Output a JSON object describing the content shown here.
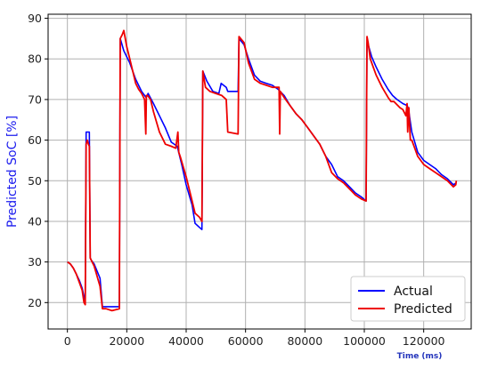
{
  "chart_data": {
    "type": "line",
    "title": "",
    "xlabel": "Time (ms)",
    "ylabel": "Predicted SoC [%]",
    "xlabel_color": "#2233bb",
    "ylabel_color": "#1a1aee",
    "xlim": [
      -6500,
      136000
    ],
    "ylim": [
      13.5,
      91
    ],
    "xticks": [
      0,
      20000,
      40000,
      60000,
      80000,
      100000,
      120000
    ],
    "yticks": [
      20,
      30,
      40,
      50,
      60,
      70,
      80,
      90
    ],
    "grid": true,
    "legend_position": "bottom-right",
    "series": [
      {
        "name": "Actual",
        "color": "#0000ff",
        "x": [
          0,
          1000,
          2000,
          3000,
          4000,
          5000,
          5600,
          6000,
          6300,
          7400,
          7700,
          8000,
          9000,
          11000,
          11800,
          13000,
          15000,
          17500,
          17800,
          19000,
          21000,
          23000,
          25000,
          26500,
          27200,
          29000,
          31000,
          33000,
          35000,
          37000,
          38500,
          40000,
          42000,
          43000,
          44500,
          45300,
          45600,
          47000,
          49000,
          51000,
          51800,
          53500,
          54000,
          57500,
          57800,
          59500,
          61000,
          63000,
          65000,
          67000,
          69000,
          71000,
          73000,
          75000,
          77000,
          79000,
          81000,
          83000,
          85000,
          87000,
          89000,
          91000,
          93000,
          95000,
          97000,
          99000,
          100600,
          100900,
          101500,
          102500,
          104000,
          106000,
          108000,
          109500,
          111000,
          113000,
          114500,
          115000,
          116000,
          118000,
          120000,
          122000,
          124000,
          126000,
          128000,
          130000,
          131000
        ],
        "values": [
          30,
          29.5,
          28.5,
          27,
          25.5,
          23.5,
          21.5,
          20.5,
          62,
          62,
          31,
          30.5,
          29.5,
          26,
          19,
          19,
          19,
          19,
          85,
          82,
          79,
          75,
          72,
          70.5,
          71.5,
          69,
          66,
          63,
          59.5,
          58.5,
          54,
          49,
          44,
          39.5,
          38.5,
          38,
          77,
          74.5,
          72,
          71.5,
          74,
          73,
          72,
          72,
          85,
          83.5,
          80,
          76,
          74.5,
          74,
          73.5,
          72.5,
          71,
          68.5,
          66.5,
          65,
          63,
          61,
          59,
          56,
          54,
          51,
          50,
          48.5,
          47,
          46,
          45,
          84,
          83,
          80.5,
          78,
          75,
          72.5,
          71,
          70,
          69,
          68.5,
          67,
          62,
          57,
          55,
          54,
          53,
          51.5,
          50.5,
          49,
          49.5
        ]
      },
      {
        "name": "Predicted",
        "color": "#ee0000",
        "x": [
          0,
          1000,
          2000,
          3000,
          4000,
          5000,
          5600,
          6000,
          6300,
          6700,
          7100,
          7400,
          7700,
          8000,
          9000,
          11000,
          11800,
          13000,
          15000,
          17500,
          17800,
          18500,
          19000,
          20000,
          21000,
          23000,
          24000,
          25000,
          26000,
          26400,
          26600,
          27000,
          28000,
          29000,
          31000,
          33000,
          35000,
          36500,
          37200,
          37500,
          38000,
          40000,
          42000,
          43000,
          44500,
          45300,
          45600,
          46500,
          48000,
          50000,
          52000,
          53500,
          54000,
          57500,
          57800,
          59500,
          61000,
          63000,
          65000,
          67000,
          69000,
          71300,
          71500,
          71700,
          73000,
          75000,
          77000,
          79000,
          81000,
          83000,
          85000,
          87000,
          89000,
          91000,
          93000,
          95000,
          97000,
          99000,
          100600,
          100900,
          101300,
          102000,
          103000,
          104000,
          106000,
          108000,
          109000,
          110000,
          112000,
          113000,
          114000,
          114400,
          114600,
          115000,
          115300,
          115500,
          116000,
          118000,
          120000,
          122000,
          124000,
          126000,
          128000,
          130000,
          130800,
          131000
        ],
        "values": [
          30,
          29.5,
          28.5,
          27,
          25,
          23,
          20,
          19.5,
          59,
          60,
          59,
          58.5,
          31,
          30.5,
          29,
          24,
          18.5,
          18.5,
          18,
          18.5,
          85,
          86,
          87,
          83,
          80,
          74,
          72.5,
          71.5,
          70,
          61.5,
          71,
          71,
          70,
          67,
          62,
          59,
          58.5,
          58,
          62,
          57,
          56,
          51,
          45,
          42,
          41,
          40,
          77,
          73,
          72,
          71.5,
          71,
          70,
          62,
          61.5,
          85.5,
          84,
          79,
          75,
          74,
          73.5,
          73,
          73,
          61.5,
          72,
          70.5,
          68.5,
          66.5,
          65,
          63,
          61,
          59,
          56,
          52,
          50.5,
          49.5,
          48,
          46.5,
          45.5,
          45,
          85.5,
          84,
          80,
          78,
          76,
          73,
          70.5,
          69.5,
          69.5,
          68,
          67.5,
          66,
          69,
          62,
          68,
          63,
          60,
          60,
          56,
          54,
          53,
          52,
          51,
          50,
          48.5,
          49,
          50
        ]
      }
    ]
  }
}
